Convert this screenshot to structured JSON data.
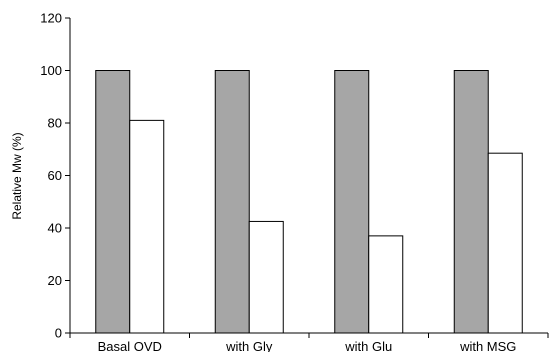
{
  "chart_data": {
    "type": "bar",
    "title": "",
    "xlabel": "",
    "ylabel": "Relative Mw  (%)",
    "ylim": [
      0,
      120
    ],
    "yticks": [
      0,
      20,
      40,
      60,
      80,
      100,
      120
    ],
    "categories": [
      "Basal OVD",
      "with Gly",
      "with Glu",
      "with MSG"
    ],
    "series": [
      {
        "values": [
          100,
          100,
          100,
          100
        ],
        "color": "#a6a6a6"
      },
      {
        "values": [
          81,
          42.5,
          37,
          68.5
        ],
        "color": "#ffffff"
      }
    ],
    "grid": false,
    "legend": "none"
  }
}
